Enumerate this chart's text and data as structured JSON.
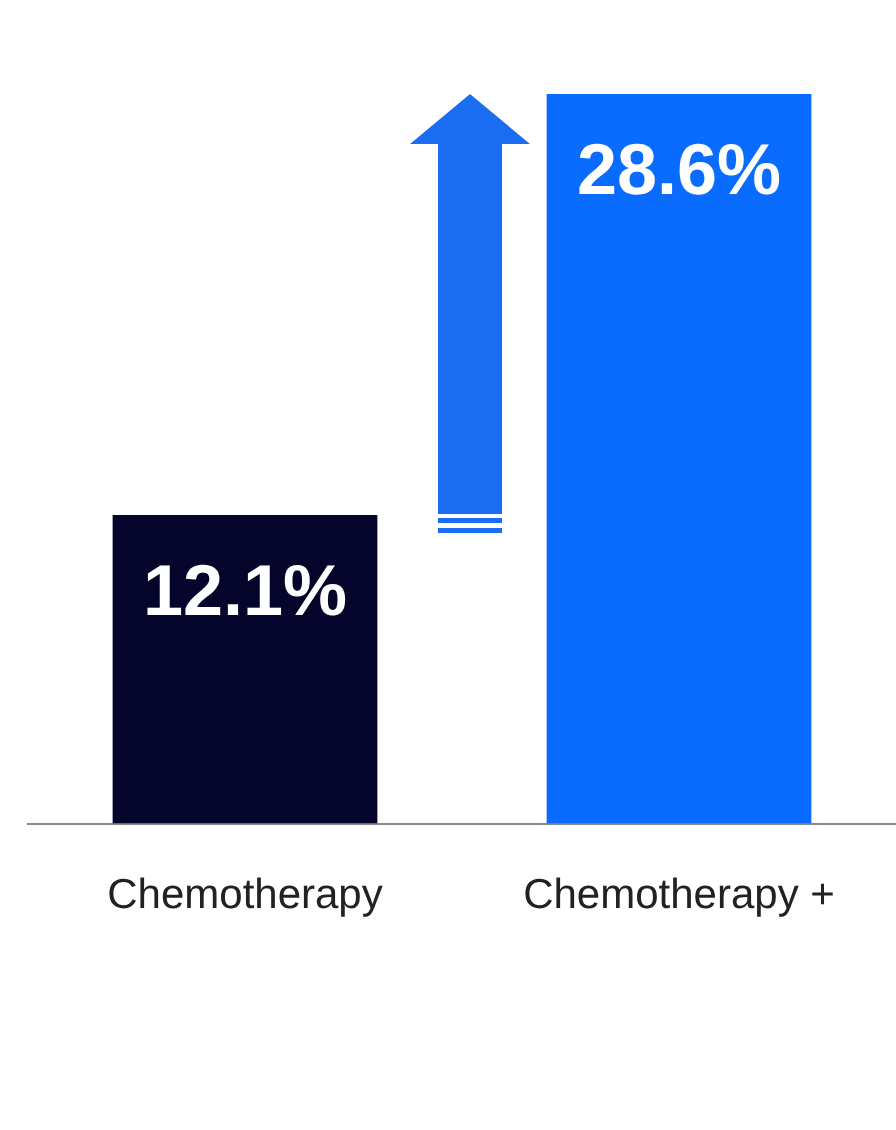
{
  "chart_data": {
    "type": "bar",
    "categories": [
      "Chemotherapy",
      "Chemotherapy +"
    ],
    "values": [
      12.1,
      28.6
    ],
    "colors": [
      "#05042a",
      "#0a6cff"
    ],
    "value_labels": [
      "12.1%",
      "28.6%"
    ],
    "grid": false,
    "legend": false,
    "tick_labels": "x"
  }
}
